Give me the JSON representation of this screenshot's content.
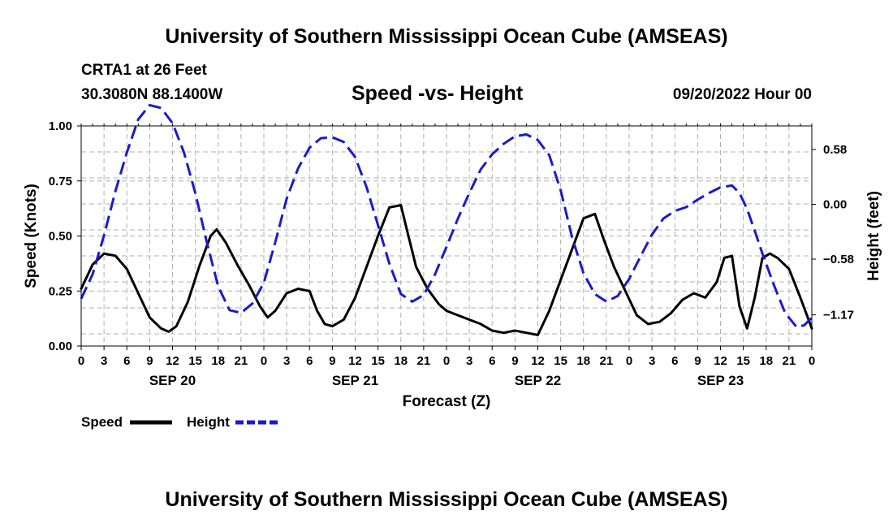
{
  "header": {
    "title": "University of Southern Mississippi Ocean Cube (AMSEAS)",
    "station": "CRTA1 at 26 Feet",
    "coords": "30.3080N  88.1400W",
    "subtitle": "Speed -vs- Height",
    "date": "09/20/2022 Hour 00"
  },
  "footer": {
    "title": "University of Southern Mississippi Ocean Cube (AMSEAS)"
  },
  "legend": {
    "speed_label": "Speed",
    "height_label": "Height"
  },
  "colors": {
    "speed": "#000000",
    "height": "#1a1acc",
    "grid": "#b0b0b0"
  },
  "chart_data": {
    "type": "line",
    "xlabel": "Forecast (Z)",
    "ylabel": "Speed (Knots)",
    "y2label": "Height (feet)",
    "xlim": [
      0,
      96
    ],
    "ylim": [
      0,
      1
    ],
    "y2lim": [
      -1.5,
      0.83
    ],
    "x_ticks": [
      0,
      3,
      6,
      9,
      12,
      15,
      18,
      21,
      24,
      27,
      30,
      33,
      36,
      39,
      42,
      45,
      48,
      51,
      54,
      57,
      60,
      63,
      66,
      69,
      72,
      75,
      78,
      81,
      84,
      87,
      90,
      93,
      96
    ],
    "x_tick_labels": [
      "0",
      "3",
      "6",
      "9",
      "12",
      "15",
      "18",
      "21",
      "0",
      "3",
      "6",
      "9",
      "12",
      "15",
      "18",
      "21",
      "0",
      "3",
      "6",
      "9",
      "12",
      "15",
      "18",
      "21",
      "0",
      "3",
      "6",
      "9",
      "12",
      "15",
      "18",
      "21",
      "0"
    ],
    "date_labels": [
      {
        "x": 12,
        "label": "SEP 20"
      },
      {
        "x": 36,
        "label": "SEP 21"
      },
      {
        "x": 60,
        "label": "SEP 22"
      },
      {
        "x": 84,
        "label": "SEP 23"
      }
    ],
    "y_ticks": [
      0,
      0.25,
      0.5,
      0.75,
      1.0
    ],
    "y_tick_labels": [
      "0.00",
      "0.25",
      "0.50",
      "0.75",
      "1.00"
    ],
    "y2_ticks": [
      0.58,
      0,
      -0.58,
      -1.17
    ],
    "y2_tick_labels": [
      "0.58",
      "0.00",
      "−0.58",
      "−1.17"
    ],
    "series": [
      {
        "name": "Speed",
        "axis": "left",
        "style": "solid",
        "x": [
          0,
          1.5,
          3,
          4.5,
          6,
          7.5,
          9,
          10.5,
          11.5,
          12.5,
          14,
          15.5,
          17,
          17.8,
          19,
          20.5,
          22,
          23.5,
          24.5,
          25.5,
          27,
          28.5,
          30,
          31,
          32,
          33,
          34.5,
          36,
          37.5,
          39,
          40.5,
          42,
          43,
          44,
          45.5,
          47,
          48,
          49.5,
          51,
          52.5,
          54,
          55.5,
          57,
          58.5,
          60,
          61.5,
          63,
          64.5,
          66,
          67.5,
          68.7,
          70,
          71.5,
          73,
          74.5,
          76,
          77.5,
          79,
          80.5,
          82,
          83.5,
          84.5,
          85.5,
          86.5,
          87.5,
          88.5,
          89.5,
          90.5,
          91.5,
          93,
          94.5,
          96
        ],
        "values": [
          0.26,
          0.37,
          0.42,
          0.41,
          0.35,
          0.24,
          0.13,
          0.08,
          0.065,
          0.09,
          0.2,
          0.36,
          0.5,
          0.53,
          0.47,
          0.37,
          0.28,
          0.18,
          0.13,
          0.16,
          0.24,
          0.26,
          0.25,
          0.16,
          0.1,
          0.09,
          0.12,
          0.22,
          0.36,
          0.5,
          0.63,
          0.64,
          0.5,
          0.36,
          0.26,
          0.19,
          0.16,
          0.14,
          0.12,
          0.1,
          0.07,
          0.06,
          0.07,
          0.06,
          0.05,
          0.16,
          0.3,
          0.44,
          0.58,
          0.6,
          0.48,
          0.36,
          0.25,
          0.14,
          0.1,
          0.11,
          0.15,
          0.21,
          0.24,
          0.22,
          0.29,
          0.4,
          0.41,
          0.18,
          0.08,
          0.22,
          0.4,
          0.42,
          0.4,
          0.35,
          0.22,
          0.08
        ]
      },
      {
        "name": "Height",
        "axis": "right",
        "style": "dashed",
        "x": [
          0,
          1.5,
          3,
          4.5,
          6,
          7.5,
          9,
          10.5,
          12,
          13.5,
          15,
          16.5,
          18,
          19.5,
          21,
          22.5,
          24,
          25.5,
          27,
          28.5,
          30,
          31.5,
          33,
          34.5,
          36,
          37.5,
          39,
          40.5,
          42,
          43.5,
          45,
          46.5,
          48,
          49.5,
          51,
          52.5,
          54,
          55.5,
          57,
          58.5,
          60,
          61.5,
          63,
          64.5,
          66,
          67.5,
          69,
          70.5,
          72,
          73.5,
          75,
          76.5,
          78,
          79.5,
          81,
          82.5,
          84,
          85.5,
          86.5,
          87.5,
          88.5,
          89.5,
          91,
          92.5,
          94,
          95,
          96
        ],
        "values": [
          -1.0,
          -0.74,
          -0.33,
          0.14,
          0.55,
          0.9,
          1.05,
          1.02,
          0.86,
          0.55,
          0.12,
          -0.4,
          -0.87,
          -1.12,
          -1.15,
          -1.05,
          -0.83,
          -0.4,
          0.06,
          0.38,
          0.6,
          0.7,
          0.71,
          0.66,
          0.5,
          0.18,
          -0.22,
          -0.63,
          -0.95,
          -1.03,
          -0.96,
          -0.74,
          -0.45,
          -0.15,
          0.12,
          0.37,
          0.53,
          0.64,
          0.72,
          0.74,
          0.68,
          0.52,
          0.15,
          -0.35,
          -0.73,
          -0.95,
          -1.03,
          -0.97,
          -0.79,
          -0.55,
          -0.32,
          -0.15,
          -0.07,
          -0.03,
          0.05,
          0.12,
          0.18,
          0.2,
          0.12,
          -0.05,
          -0.28,
          -0.52,
          -0.85,
          -1.15,
          -1.3,
          -1.28,
          -1.2
        ]
      }
    ]
  }
}
